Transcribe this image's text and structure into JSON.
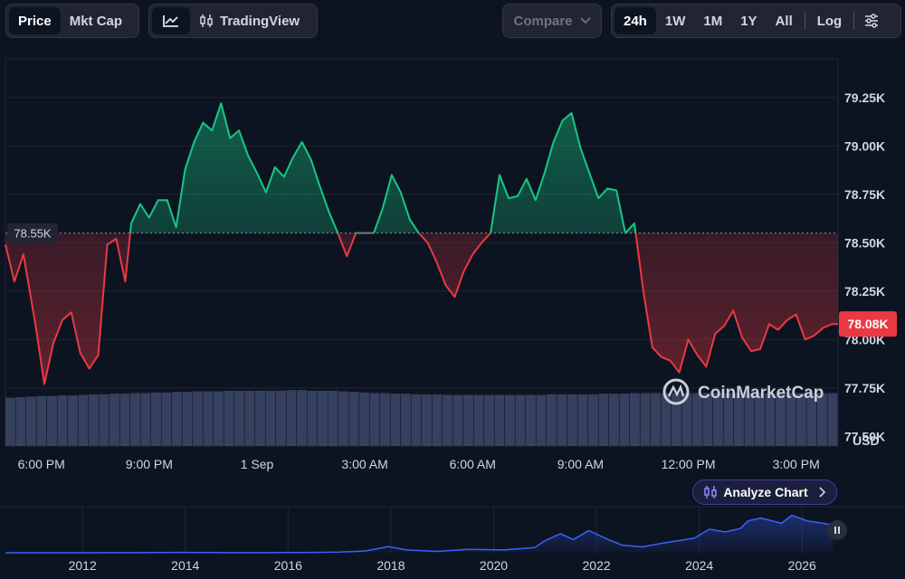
{
  "toolbar": {
    "view_tabs": [
      "Price",
      "Mkt Cap"
    ],
    "active_view": "Price",
    "tradingview_label": "TradingView",
    "compare_label": "Compare",
    "ranges": [
      "24h",
      "1W",
      "1M",
      "1Y",
      "All"
    ],
    "active_range": "24h",
    "log_label": "Log"
  },
  "brand": {
    "name": "CoinMarketCap"
  },
  "analyze_label": "Analyze Chart",
  "colors": {
    "up": "#16c784",
    "down": "#ea3943",
    "volume": "#3b4566",
    "navigator": "#3861fb",
    "background": "#0d1421"
  },
  "chart_data": [
    {
      "type": "area",
      "baseline": 78.55,
      "baseline_label": "78.55K",
      "current_label": "78.08K",
      "unit_label": "USD",
      "ylim": [
        77.45,
        79.45
      ],
      "y_ticks": [
        77.5,
        77.75,
        78.0,
        78.25,
        78.5,
        78.75,
        79.0,
        79.25
      ],
      "y_tick_labels": [
        "77.50K",
        "77.75K",
        "78.00K",
        "78.25K",
        "78.50K",
        "78.75K",
        "79.00K",
        "79.25K"
      ],
      "x_range": [
        0,
        1390
      ],
      "x_ticks": [
        60,
        240,
        420,
        600,
        780,
        960,
        1140,
        1320
      ],
      "x_tick_labels": [
        "6:00 PM",
        "9:00 PM",
        "1 Sep",
        "3:00 AM",
        "6:00 AM",
        "9:00 AM",
        "12:00 PM",
        "3:00 PM"
      ],
      "x": [
        0,
        15,
        30,
        50,
        65,
        80,
        95,
        110,
        125,
        140,
        155,
        170,
        185,
        200,
        210,
        225,
        240,
        255,
        270,
        285,
        300,
        315,
        330,
        345,
        360,
        375,
        390,
        405,
        420,
        435,
        450,
        465,
        480,
        495,
        510,
        525,
        540,
        555,
        570,
        585,
        600,
        615,
        630,
        645,
        660,
        675,
        690,
        705,
        720,
        735,
        750,
        765,
        780,
        795,
        810,
        825,
        840,
        855,
        870,
        885,
        900,
        915,
        930,
        945,
        960,
        975,
        990,
        1005,
        1020,
        1035,
        1050,
        1065,
        1080,
        1095,
        1110,
        1125,
        1140,
        1155,
        1170,
        1185,
        1200,
        1215,
        1230,
        1245,
        1260,
        1275,
        1290,
        1305,
        1320,
        1335,
        1350,
        1365,
        1380,
        1390
      ],
      "y": [
        78.49,
        78.3,
        78.44,
        78.08,
        77.77,
        77.98,
        78.1,
        78.14,
        77.93,
        77.85,
        77.92,
        78.49,
        78.52,
        78.3,
        78.6,
        78.7,
        78.63,
        78.72,
        78.72,
        78.58,
        78.88,
        79.02,
        79.12,
        79.08,
        79.22,
        79.04,
        79.08,
        78.95,
        78.86,
        78.76,
        78.89,
        78.84,
        78.94,
        79.02,
        78.93,
        78.79,
        78.66,
        78.55,
        78.43,
        78.55,
        78.55,
        78.55,
        78.68,
        78.85,
        78.76,
        78.62,
        78.55,
        78.5,
        78.4,
        78.28,
        78.22,
        78.35,
        78.44,
        78.5,
        78.55,
        78.85,
        78.73,
        78.74,
        78.83,
        78.72,
        78.86,
        79.02,
        79.13,
        79.17,
        78.99,
        78.86,
        78.73,
        78.78,
        78.77,
        78.55,
        78.6,
        78.25,
        77.96,
        77.91,
        77.89,
        77.83,
        78.0,
        77.92,
        77.86,
        78.03,
        78.07,
        78.15,
        78.01,
        77.94,
        77.95,
        78.08,
        78.05,
        78.1,
        78.13,
        78.0,
        78.02,
        78.06,
        78.08,
        78.08
      ]
    },
    {
      "type": "bar",
      "name": "volume",
      "values": [
        0.82,
        0.83,
        0.84,
        0.85,
        0.85,
        0.86,
        0.86,
        0.87,
        0.88,
        0.88,
        0.89,
        0.89,
        0.9,
        0.9,
        0.91,
        0.91,
        0.92,
        0.92,
        0.93,
        0.93,
        0.93,
        0.94,
        0.94,
        0.94,
        0.94,
        0.94,
        0.94,
        0.95,
        0.95,
        0.94,
        0.94,
        0.94,
        0.93,
        0.92,
        0.91,
        0.9,
        0.9,
        0.89,
        0.89,
        0.88,
        0.88,
        0.88,
        0.87,
        0.87,
        0.87,
        0.87,
        0.87,
        0.87,
        0.87,
        0.87,
        0.87,
        0.87,
        0.88,
        0.88,
        0.88,
        0.88,
        0.88,
        0.89,
        0.89,
        0.89,
        0.9,
        0.9,
        0.9,
        0.9,
        0.9,
        0.9,
        0.9,
        0.9,
        0.9,
        0.9,
        0.9,
        0.9,
        0.9,
        0.9,
        0.9,
        0.9,
        0.9,
        0.9,
        0.9,
        0.9
      ]
    },
    {
      "type": "area",
      "name": "navigator",
      "x_range": [
        2010.5,
        2026.7
      ],
      "x_ticks": [
        2012,
        2014,
        2016,
        2018,
        2020,
        2022,
        2024,
        2026
      ],
      "x_tick_labels": [
        "2012",
        "2014",
        "2016",
        "2018",
        "2020",
        "2022",
        "2024",
        "2026"
      ],
      "ylim": [
        0,
        120
      ],
      "x": [
        2010.5,
        2012.0,
        2013.0,
        2013.9,
        2014.5,
        2015.5,
        2016.5,
        2017.0,
        2017.5,
        2017.95,
        2018.3,
        2018.9,
        2019.5,
        2020.2,
        2020.8,
        2021.0,
        2021.3,
        2021.55,
        2021.85,
        2022.2,
        2022.5,
        2022.9,
        2023.3,
        2023.9,
        2024.2,
        2024.5,
        2024.8,
        2024.95,
        2025.2,
        2025.6,
        2025.8,
        2026.1,
        2026.4,
        2026.6
      ],
      "y": [
        0,
        0.1,
        0.2,
        1,
        0.5,
        0.3,
        1,
        2,
        5,
        18,
        8,
        4,
        10,
        8,
        15,
        35,
        55,
        38,
        64,
        40,
        22,
        17,
        28,
        42,
        68,
        60,
        70,
        92,
        100,
        85,
        108,
        92,
        85,
        80
      ]
    }
  ]
}
